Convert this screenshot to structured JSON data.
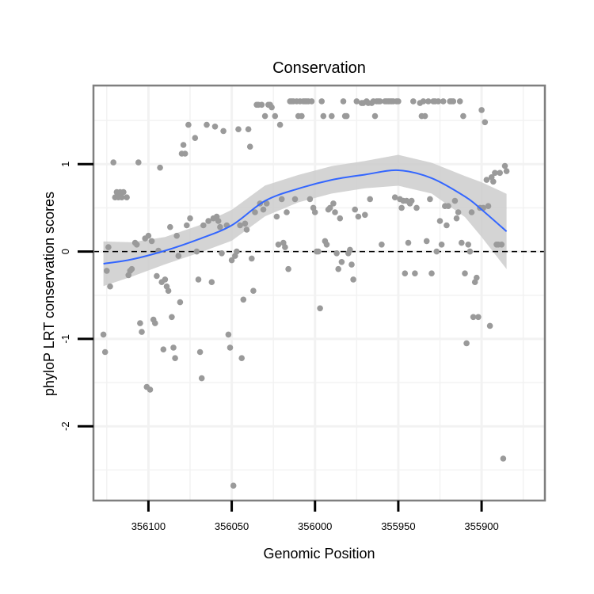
{
  "chart_data": {
    "type": "scatter",
    "title": "Conservation",
    "xlabel": "Genomic Position",
    "ylabel": "phyloP LRT conservation scores",
    "x_reversed": true,
    "xlim": [
      356133,
      355862
    ],
    "ylim": [
      -2.85,
      1.9
    ],
    "x_ticks": [
      356100,
      356050,
      356000,
      355950,
      355900
    ],
    "y_ticks": [
      -2,
      -1,
      0,
      1
    ],
    "reference_line": {
      "y": 0,
      "style": "dashed"
    },
    "colors": {
      "points": "#9a9a9a",
      "smooth": "#3366ff",
      "band": "#cccccc",
      "frame": "#7f7f7f",
      "grid": "#f2f2f2"
    },
    "points": [
      [
        356127,
        -0.95
      ],
      [
        356126,
        -1.15
      ],
      [
        356125,
        -0.22
      ],
      [
        356124,
        0.05
      ],
      [
        356123,
        -0.4
      ],
      [
        356121,
        1.02
      ],
      [
        356120,
        0.62
      ],
      [
        356119,
        0.68
      ],
      [
        356118,
        0.62
      ],
      [
        356117,
        0.68
      ],
      [
        356116,
        0.62
      ],
      [
        356115,
        0.68
      ],
      [
        356113,
        0.62
      ],
      [
        356112,
        -0.27
      ],
      [
        356111,
        -0.22
      ],
      [
        356110,
        -0.2
      ],
      [
        356108,
        0.1
      ],
      [
        356107,
        0.08
      ],
      [
        356106,
        1.02
      ],
      [
        356105,
        -0.82
      ],
      [
        356104,
        -0.92
      ],
      [
        356102,
        0.15
      ],
      [
        356101,
        -1.55
      ],
      [
        356100,
        0.18
      ],
      [
        356099,
        -1.58
      ],
      [
        356098,
        0.12
      ],
      [
        356097,
        -0.78
      ],
      [
        356096,
        -0.82
      ],
      [
        356095,
        -0.28
      ],
      [
        356094,
        0.01
      ],
      [
        356093,
        0.96
      ],
      [
        356092,
        -0.35
      ],
      [
        356091,
        -1.12
      ],
      [
        356090,
        -0.32
      ],
      [
        356089,
        -0.4
      ],
      [
        356088,
        -0.45
      ],
      [
        356087,
        0.28
      ],
      [
        356086,
        -0.75
      ],
      [
        356085,
        -1.1
      ],
      [
        356084,
        -1.22
      ],
      [
        356083,
        0.18
      ],
      [
        356082,
        -0.05
      ],
      [
        356081,
        -0.58
      ],
      [
        356080,
        1.12
      ],
      [
        356079,
        1.22
      ],
      [
        356078,
        1.12
      ],
      [
        356077,
        0.3
      ],
      [
        356076,
        1.45
      ],
      [
        356075,
        0.38
      ],
      [
        356072,
        1.3
      ],
      [
        356071,
        0.0
      ],
      [
        356070,
        -0.32
      ],
      [
        356069,
        -1.15
      ],
      [
        356068,
        -1.45
      ],
      [
        356067,
        0.3
      ],
      [
        356065,
        1.45
      ],
      [
        356064,
        0.35
      ],
      [
        356062,
        -0.35
      ],
      [
        356061,
        0.38
      ],
      [
        356060,
        1.43
      ],
      [
        356059,
        0.4
      ],
      [
        356058,
        0.35
      ],
      [
        356057,
        0.28
      ],
      [
        356056,
        -0.02
      ],
      [
        356055,
        1.38
      ],
      [
        356053,
        0.3
      ],
      [
        356052,
        -0.95
      ],
      [
        356051,
        -1.1
      ],
      [
        356050,
        -0.1
      ],
      [
        356049,
        -2.68
      ],
      [
        356048,
        -0.05
      ],
      [
        356047,
        0.0
      ],
      [
        356046,
        1.4
      ],
      [
        356045,
        0.3
      ],
      [
        356044,
        -1.22
      ],
      [
        356043,
        -0.55
      ],
      [
        356042,
        0.32
      ],
      [
        356041,
        0.25
      ],
      [
        356040,
        1.4
      ],
      [
        356039,
        1.2
      ],
      [
        356038,
        -0.08
      ],
      [
        356037,
        -0.45
      ],
      [
        356036,
        0.45
      ],
      [
        356035,
        1.68
      ],
      [
        356034,
        1.68
      ],
      [
        356033,
        0.55
      ],
      [
        356032,
        1.68
      ],
      [
        356031,
        0.48
      ],
      [
        356030,
        1.55
      ],
      [
        356029,
        0.55
      ],
      [
        356028,
        1.68
      ],
      [
        356027,
        1.68
      ],
      [
        356026,
        1.65
      ],
      [
        356024,
        1.55
      ],
      [
        356023,
        0.4
      ],
      [
        356022,
        0.08
      ],
      [
        356021,
        1.45
      ],
      [
        356020,
        0.6
      ],
      [
        356019,
        0.1
      ],
      [
        356018,
        0.05
      ],
      [
        356017,
        0.45
      ],
      [
        356016,
        -0.2
      ],
      [
        356015,
        1.72
      ],
      [
        356014,
        1.72
      ],
      [
        356013,
        1.72
      ],
      [
        356012,
        0.6
      ],
      [
        356011,
        1.72
      ],
      [
        356010,
        1.55
      ],
      [
        356009,
        1.72
      ],
      [
        356008,
        1.55
      ],
      [
        356007,
        1.72
      ],
      [
        356006,
        1.72
      ],
      [
        356005,
        1.72
      ],
      [
        356004,
        1.72
      ],
      [
        356003,
        0.6
      ],
      [
        356002,
        1.72
      ],
      [
        356001,
        0.5
      ],
      [
        356000,
        0.45
      ],
      [
        355999,
        0.0
      ],
      [
        355998,
        0.0
      ],
      [
        355997,
        -0.65
      ],
      [
        355996,
        1.72
      ],
      [
        355995,
        1.55
      ],
      [
        355994,
        0.12
      ],
      [
        355993,
        0.08
      ],
      [
        355992,
        0.48
      ],
      [
        355991,
        0.5
      ],
      [
        355990,
        1.55
      ],
      [
        355989,
        0.55
      ],
      [
        355988,
        0.45
      ],
      [
        355987,
        -0.02
      ],
      [
        355986,
        -0.2
      ],
      [
        355985,
        0.38
      ],
      [
        355984,
        -0.12
      ],
      [
        355983,
        1.72
      ],
      [
        355982,
        1.55
      ],
      [
        355981,
        1.55
      ],
      [
        355980,
        -0.02
      ],
      [
        355979,
        0.02
      ],
      [
        355978,
        -0.15
      ],
      [
        355977,
        -0.32
      ],
      [
        355976,
        0.48
      ],
      [
        355975,
        1.72
      ],
      [
        355974,
        0.4
      ],
      [
        355972,
        1.7
      ],
      [
        355971,
        1.7
      ],
      [
        355970,
        0.42
      ],
      [
        355969,
        1.72
      ],
      [
        355968,
        1.7
      ],
      [
        355967,
        0.6
      ],
      [
        355966,
        1.7
      ],
      [
        355965,
        1.72
      ],
      [
        355964,
        1.55
      ],
      [
        355963,
        1.72
      ],
      [
        355962,
        1.72
      ],
      [
        355961,
        1.72
      ],
      [
        355960,
        0.08
      ],
      [
        355958,
        1.72
      ],
      [
        355957,
        1.72
      ],
      [
        355956,
        1.72
      ],
      [
        355955,
        1.72
      ],
      [
        355954,
        1.72
      ],
      [
        355953,
        1.72
      ],
      [
        355952,
        0.62
      ],
      [
        355951,
        1.72
      ],
      [
        355950,
        1.72
      ],
      [
        355949,
        0.6
      ],
      [
        355948,
        0.5
      ],
      [
        355947,
        0.58
      ],
      [
        355946,
        -0.25
      ],
      [
        355945,
        0.58
      ],
      [
        355944,
        0.1
      ],
      [
        355943,
        0.55
      ],
      [
        355942,
        0.58
      ],
      [
        355941,
        1.72
      ],
      [
        355940,
        -0.25
      ],
      [
        355939,
        0.5
      ],
      [
        355937,
        1.7
      ],
      [
        355936,
        1.55
      ],
      [
        355935,
        1.72
      ],
      [
        355934,
        1.55
      ],
      [
        355933,
        0.12
      ],
      [
        355932,
        1.72
      ],
      [
        355931,
        0.6
      ],
      [
        355930,
        -0.25
      ],
      [
        355929,
        1.72
      ],
      [
        355928,
        1.72
      ],
      [
        355927,
        0.0
      ],
      [
        355926,
        1.72
      ],
      [
        355925,
        0.35
      ],
      [
        355924,
        0.08
      ],
      [
        355923,
        1.72
      ],
      [
        355922,
        0.52
      ],
      [
        355921,
        0.3
      ],
      [
        355920,
        0.52
      ],
      [
        355919,
        1.72
      ],
      [
        355918,
        1.72
      ],
      [
        355917,
        1.72
      ],
      [
        355916,
        0.58
      ],
      [
        355915,
        0.38
      ],
      [
        355914,
        0.45
      ],
      [
        355913,
        1.72
      ],
      [
        355912,
        0.1
      ],
      [
        355911,
        1.55
      ],
      [
        355910,
        -0.25
      ],
      [
        355909,
        -1.05
      ],
      [
        355908,
        0.08
      ],
      [
        355907,
        0.0
      ],
      [
        355906,
        0.45
      ],
      [
        355905,
        -0.75
      ],
      [
        355904,
        -0.35
      ],
      [
        355903,
        -0.3
      ],
      [
        355902,
        -0.75
      ],
      [
        355901,
        0.5
      ],
      [
        355900,
        1.62
      ],
      [
        355899,
        0.5
      ],
      [
        355898,
        1.48
      ],
      [
        355897,
        0.82
      ],
      [
        355896,
        0.52
      ],
      [
        355895,
        -0.85
      ],
      [
        355894,
        0.85
      ],
      [
        355893,
        0.8
      ],
      [
        355892,
        0.9
      ],
      [
        355891,
        0.08
      ],
      [
        355890,
        0.08
      ],
      [
        355889,
        0.9
      ],
      [
        355888,
        0.08
      ],
      [
        355887,
        -2.37
      ],
      [
        355886,
        0.98
      ],
      [
        355885,
        0.92
      ]
    ],
    "smooth": {
      "x": [
        356127,
        356110,
        356090,
        356070,
        356050,
        356030,
        356010,
        355990,
        355970,
        355950,
        355930,
        355910,
        355900,
        355885
      ],
      "y": [
        -0.14,
        -0.09,
        0.01,
        0.14,
        0.3,
        0.58,
        0.72,
        0.82,
        0.88,
        0.93,
        0.84,
        0.63,
        0.48,
        0.23
      ],
      "se": [
        0.13,
        0.1,
        0.08,
        0.08,
        0.09,
        0.09,
        0.08,
        0.08,
        0.08,
        0.09,
        0.09,
        0.12,
        0.16,
        0.22
      ]
    }
  }
}
